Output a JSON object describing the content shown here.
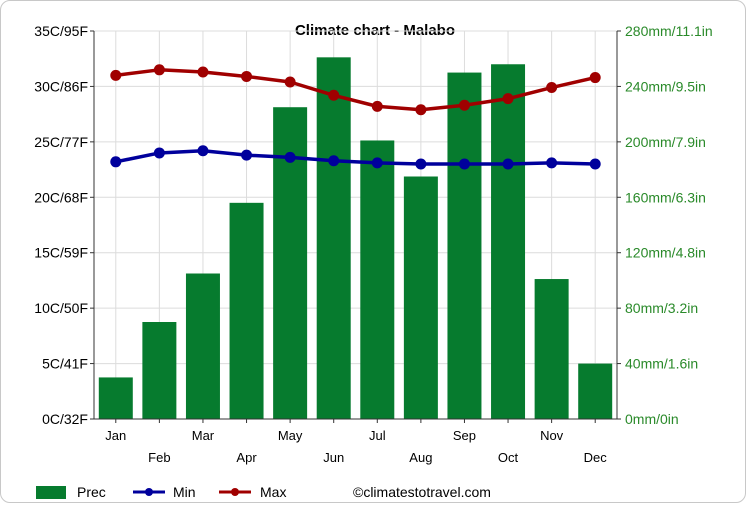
{
  "chart_data": {
    "type": "bar+line",
    "title": "Climate chart - Malabo",
    "categories": [
      "Jan",
      "Feb",
      "Mar",
      "Apr",
      "May",
      "Jun",
      "Jul",
      "Aug",
      "Sep",
      "Oct",
      "Nov",
      "Dec"
    ],
    "series": [
      {
        "name": "Prec",
        "kind": "bar",
        "axis": "right",
        "unit": "mm",
        "values": [
          30,
          70,
          105,
          156,
          225,
          261,
          201,
          175,
          250,
          256,
          101,
          40
        ]
      },
      {
        "name": "Min",
        "kind": "line",
        "axis": "left",
        "unit": "C",
        "values": [
          23.2,
          24.0,
          24.2,
          23.8,
          23.6,
          23.3,
          23.1,
          23.0,
          23.0,
          23.0,
          23.1,
          23.0
        ]
      },
      {
        "name": "Max",
        "kind": "line",
        "axis": "left",
        "unit": "C",
        "values": [
          31.0,
          31.5,
          31.3,
          30.9,
          30.4,
          29.2,
          28.2,
          27.9,
          28.3,
          28.9,
          29.9,
          30.8
        ]
      }
    ],
    "left_axis": {
      "ylim": [
        0,
        35
      ],
      "ticks": [
        "0C/32F",
        "5C/41F",
        "10C/50F",
        "15C/59F",
        "20C/68F",
        "25C/77F",
        "30C/86F",
        "35C/95F"
      ]
    },
    "right_axis": {
      "ylim": [
        0,
        280
      ],
      "ticks": [
        "0mm/0in",
        "40mm/1.6in",
        "80mm/3.2in",
        "120mm/4.8in",
        "160mm/6.3in",
        "200mm/7.9in",
        "240mm/9.5in",
        "280mm/11.1in"
      ]
    },
    "grid": true,
    "legend": {
      "position": "bottom-left",
      "items": [
        "Prec",
        "Min",
        "Max"
      ]
    },
    "credit": "©climatestotravel.com"
  },
  "colors": {
    "prec": "#067b2e",
    "min": "#00009c",
    "max": "#a00000",
    "grid": "#dcdcdc",
    "right_axis": "#2a8a2a"
  }
}
